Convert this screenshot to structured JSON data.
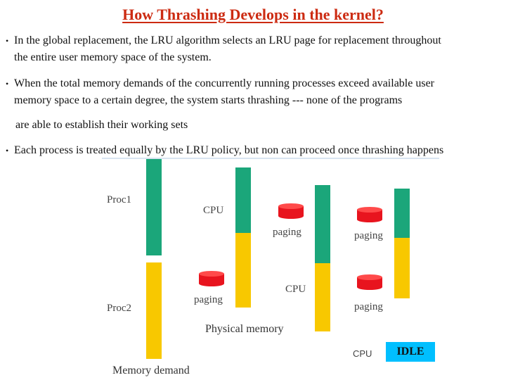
{
  "title": "How Thrashing Develops in the kernel?",
  "bullets": [
    {
      "line1": "In the global replacement, the LRU algorithm selects an LRU page  for replacement throughout",
      "line2": "the entire user memory space of the system."
    },
    {
      "line1": "When the total memory demands of the concurrently running processes exceed  available user",
      "line2": "memory space to a certain degree,  the system starts thrashing --- none of the programs",
      "line3": "are able to establish their working sets"
    },
    {
      "line1": "Each process is treated equally by the LRU policy, but non can proceed once thrashing happens"
    }
  ],
  "diagram": {
    "proc1": "Proc1",
    "proc2": "Proc2",
    "cpu": "CPU",
    "paging": "paging",
    "physical_memory": "Physical memory",
    "memory_demand": "Memory demand",
    "idle": "IDLE",
    "colors": {
      "cpu": "#1ba67a",
      "paging_wait": "#f8c800",
      "disk": "#e8141e",
      "idle": "#00bfff"
    }
  }
}
